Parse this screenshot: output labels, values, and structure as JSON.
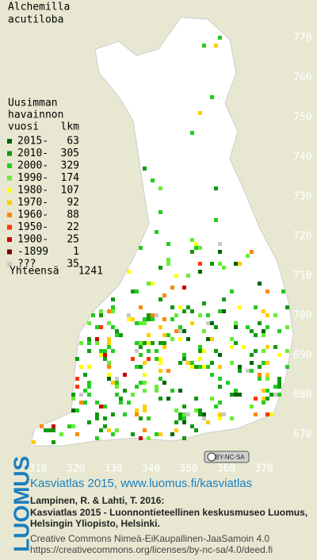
{
  "map": {
    "title": [
      "Alchemilla",
      "acutiloba"
    ],
    "legend_header": [
      "Uusimman",
      "havainnon",
      "vuosi",
      "lkm"
    ],
    "legend": [
      {
        "label": "2015-",
        "count": 63,
        "color": "#006400"
      },
      {
        "label": "2010-",
        "count": 305,
        "color": "#119911"
      },
      {
        "label": "2000-",
        "count": 329,
        "color": "#22cc22"
      },
      {
        "label": "1990-",
        "count": 174,
        "color": "#66ee33"
      },
      {
        "label": "1980-",
        "count": 107,
        "color": "#ffff00"
      },
      {
        "label": "1970-",
        "count": 92,
        "color": "#ffcc00"
      },
      {
        "label": "1960-",
        "count": 88,
        "color": "#ff8800"
      },
      {
        "label": "1950-",
        "count": 22,
        "color": "#ff3300"
      },
      {
        "label": "1900-",
        "count": 25,
        "color": "#cc0000"
      },
      {
        "label": "-1899",
        "count": 1,
        "color": "#770000"
      },
      {
        "label": "???",
        "count": 35,
        "color": "#c8c8c8"
      }
    ],
    "total_label": "Yhteensä",
    "total": 1241,
    "x_ticks": [
      310,
      320,
      330,
      340,
      350,
      360,
      370
    ],
    "y_ticks": [
      670,
      680,
      690,
      700,
      710,
      720,
      730,
      740,
      750,
      760,
      770
    ],
    "badge": "BY-NC-SA"
  },
  "footer": {
    "logo": "LUOMUS",
    "headline": "Kasviatlas 2015, www.luomus.fi/kasviatlas",
    "citation": [
      "Lampinen, R. & Lahti, T. 2016:",
      "Kasviatlas 2015 - Luonnontieteellinen keskusmuseo Luomus,",
      "Helsingin Yliopisto, Helsinki."
    ],
    "license": [
      "Creative Commons Nimeä-EiKaupallinen-JaaSamoin 4.0",
      "https://creativecommons.org/licenses/by-nc-sa/4.0/deed.fi"
    ]
  }
}
